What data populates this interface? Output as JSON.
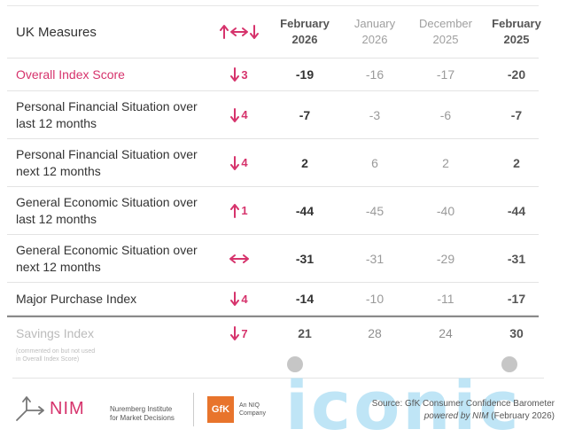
{
  "header": {
    "measure_label": "UK Measures",
    "columns": [
      {
        "line1": "February",
        "line2": "2026"
      },
      {
        "line1": "January",
        "line2": "2026"
      },
      {
        "line1": "December",
        "line2": "2025"
      },
      {
        "line1": "February",
        "line2": "2025"
      }
    ]
  },
  "rows": [
    {
      "label": "Overall Index Score",
      "direction": "down",
      "change": "3",
      "values": [
        "-19",
        "-16",
        "-17",
        "-20"
      ]
    },
    {
      "label": "Personal Financial Situation over last 12 months",
      "direction": "down",
      "change": "4",
      "values": [
        "-7",
        "-3",
        "-6",
        "-7"
      ]
    },
    {
      "label": "Personal Financial Situation over next 12 months",
      "direction": "down",
      "change": "4",
      "values": [
        "2",
        "6",
        "2",
        "2"
      ]
    },
    {
      "label": "General Economic Situation over last 12 months",
      "direction": "up",
      "change": "1",
      "values": [
        "-44",
        "-45",
        "-40",
        "-44"
      ]
    },
    {
      "label": "General Economic Situation over next 12 months",
      "direction": "same",
      "change": "",
      "values": [
        "-31",
        "-31",
        "-29",
        "-31"
      ]
    },
    {
      "label": "Major Purchase Index",
      "direction": "down",
      "change": "4",
      "values": [
        "-14",
        "-10",
        "-11",
        "-17"
      ]
    }
  ],
  "savings": {
    "label": "Savings Index",
    "note_line1": "(commented on but not used",
    "note_line2": "in Overall Index Score)",
    "direction": "down",
    "change": "7",
    "values": [
      "21",
      "28",
      "24",
      "30"
    ]
  },
  "footer": {
    "nim_logo_text": "NIM",
    "nim_institute_line1": "Nuremberg Institute",
    "nim_institute_line2": "for Market Decisions",
    "gfk_logo_text": "GfK",
    "gfk_sub_line1": "An NIQ",
    "gfk_sub_line2": "Company",
    "source_line1": "Source: GfK Consumer Confidence Barometer",
    "source_line2_em": "powered by NIM",
    "source_line2_rest": " (February 2026)",
    "watermark_text": "iconic"
  },
  "colors": {
    "accent": "#d6336c",
    "watermark": "#bfe5f6",
    "gfk_orange": "#e8742c"
  },
  "icons": {
    "header_change": "up-left-right-down-arrows-icon",
    "down": "arrow-down-icon",
    "up": "arrow-up-icon",
    "same": "arrow-left-right-icon"
  }
}
